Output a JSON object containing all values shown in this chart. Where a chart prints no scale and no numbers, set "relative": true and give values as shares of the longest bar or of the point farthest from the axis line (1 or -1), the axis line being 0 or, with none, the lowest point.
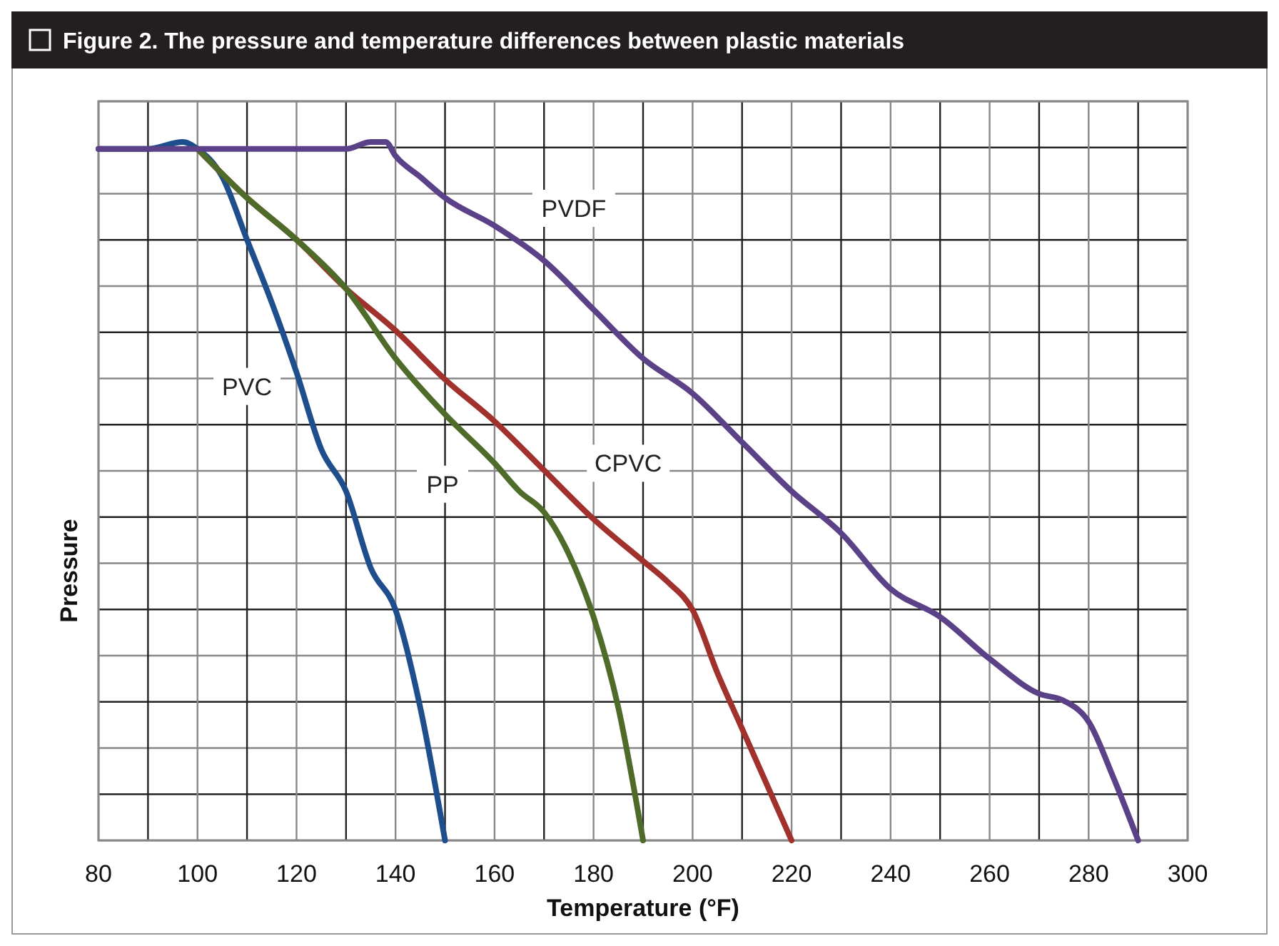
{
  "chart_data": {
    "type": "line",
    "title": "Figure 2. The pressure and temperature differences between plastic materials",
    "xlabel": "Temperature (°F)",
    "ylabel": "Pressure",
    "relative": true,
    "grid": true,
    "line_style": "solid",
    "xlim": [
      80,
      300
    ],
    "xticks": [
      80,
      {
        "value": 90,
        "label": null
      },
      100,
      {
        "value": 110,
        "label": null
      },
      120,
      {
        "value": 130,
        "label": null
      },
      140,
      {
        "value": 150,
        "label": null
      },
      160,
      {
        "value": 170,
        "label": null
      },
      180,
      {
        "value": 190,
        "label": null
      },
      200,
      {
        "value": 210,
        "label": null
      },
      220,
      {
        "value": 230,
        "label": null
      },
      240,
      {
        "value": 250,
        "label": null
      },
      260,
      {
        "value": 270,
        "label": null
      },
      280,
      {
        "value": 290,
        "label": null
      },
      300
    ],
    "series": [
      {
        "name": "PVC",
        "color": "#1f4e8c",
        "x": [
          80,
          90,
          97,
          100,
          105,
          110,
          115,
          120,
          125,
          130,
          135,
          140,
          145,
          150
        ],
        "values": [
          0.99,
          0.99,
          1,
          0.99,
          0.95,
          0.86,
          0.77,
          0.67,
          0.56,
          0.5,
          0.39,
          0.33,
          0.19,
          0
        ]
      },
      {
        "name": "CPVC",
        "color": "#a0312d",
        "x": [
          100,
          110,
          120,
          130,
          140,
          150,
          160,
          170,
          180,
          190,
          195,
          200,
          205,
          210,
          215,
          220
        ],
        "values": [
          0.99,
          0.92,
          0.86,
          0.79,
          0.73,
          0.66,
          0.6,
          0.53,
          0.46,
          0.4,
          0.37,
          0.33,
          0.24,
          0.16,
          0.08,
          0
        ]
      },
      {
        "name": "PP",
        "color": "#4f6b2a",
        "x": [
          100,
          110,
          120,
          130,
          140,
          150,
          160,
          165,
          170,
          175,
          180,
          185,
          190
        ],
        "values": [
          0.99,
          0.92,
          0.86,
          0.79,
          0.69,
          0.61,
          0.54,
          0.5,
          0.47,
          0.41,
          0.32,
          0.19,
          0
        ]
      },
      {
        "name": "PVDF",
        "color": "#5b4187",
        "x": [
          80,
          90,
          100,
          110,
          120,
          130,
          135,
          138,
          140,
          145,
          150,
          160,
          170,
          180,
          190,
          200,
          210,
          220,
          230,
          240,
          250,
          260,
          270,
          275,
          280,
          285,
          290
        ],
        "values": [
          0.99,
          0.99,
          0.99,
          0.99,
          0.99,
          0.99,
          1,
          1,
          0.98,
          0.95,
          0.92,
          0.88,
          0.83,
          0.76,
          0.69,
          0.64,
          0.57,
          0.5,
          0.44,
          0.36,
          0.32,
          0.26,
          0.21,
          0.2,
          0.17,
          0.09,
          0
        ]
      }
    ]
  }
}
